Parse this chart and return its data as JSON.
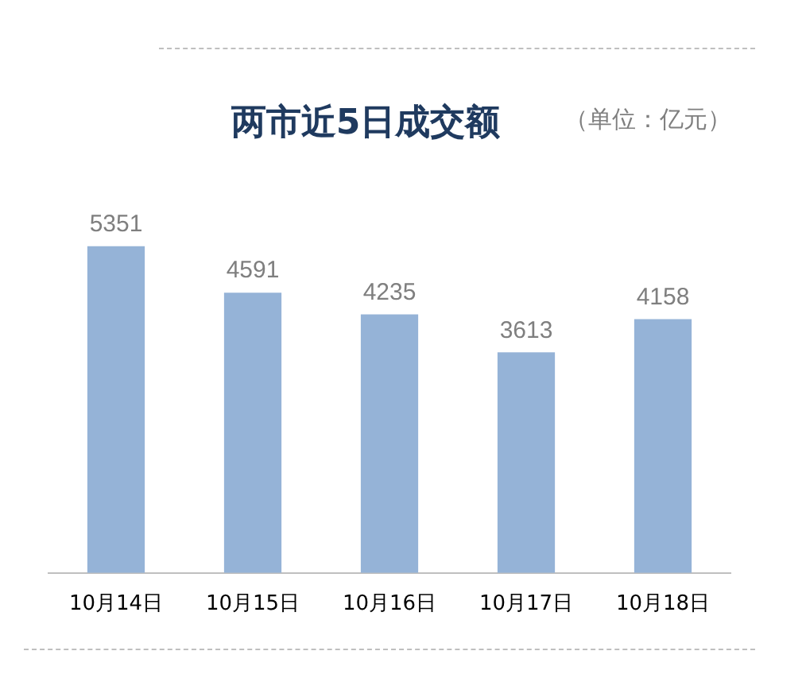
{
  "chart_data": {
    "type": "bar",
    "title": "两市近5日成交额",
    "subtitle": "（单位：亿元）",
    "categories": [
      "10月14日",
      "10月15日",
      "10月16日",
      "10月17日",
      "10月18日"
    ],
    "values": [
      5351,
      4591,
      4235,
      3613,
      4158
    ],
    "color": "#95b3d7",
    "data_labels": true,
    "grid": false,
    "legend": false
  }
}
